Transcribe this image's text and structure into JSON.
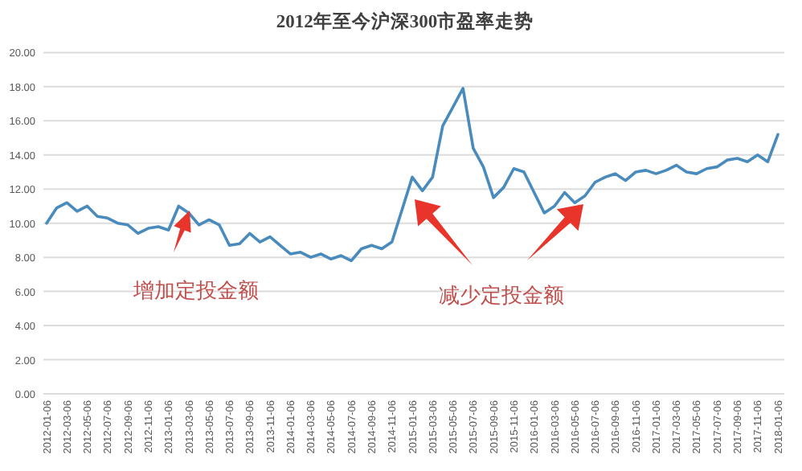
{
  "chart_data": {
    "type": "line",
    "title": "2012年至今沪深300市盈率走势",
    "categories": [
      "2012-01-06",
      null,
      "2012-03-06",
      null,
      "2012-05-06",
      null,
      "2012-07-06",
      null,
      "2012-09-06",
      null,
      "2012-11-06",
      null,
      "2013-01-06",
      null,
      "2013-03-06",
      null,
      "2013-05-06",
      null,
      "2013-07-06",
      null,
      "2013-09-06",
      null,
      "2013-11-06",
      null,
      "2014-01-06",
      null,
      "2014-03-06",
      null,
      "2014-05-06",
      null,
      "2014-07-06",
      null,
      "2014-09-06",
      null,
      "2014-11-06",
      null,
      "2015-01-06",
      null,
      "2015-03-06",
      null,
      "2015-05-06",
      null,
      "2015-07-06",
      null,
      "2015-09-06",
      null,
      "2015-11-06",
      null,
      "2016-01-06",
      null,
      "2016-03-06",
      null,
      "2016-05-06",
      null,
      "2016-07-06",
      null,
      "2016-09-06",
      null,
      "2016-11-06",
      null,
      "2017-01-06",
      null,
      "2017-03-06",
      null,
      "2017-05-06",
      null,
      "2017-07-06",
      null,
      "2017-09-06",
      null,
      "2017-11-06",
      null,
      "2018-01-06"
    ],
    "series": [
      {
        "color": "#4a8bbd",
        "values": [
          10.0,
          10.9,
          11.2,
          10.7,
          11.0,
          10.4,
          10.3,
          10.0,
          9.9,
          9.4,
          9.7,
          9.8,
          9.6,
          11.0,
          10.6,
          9.9,
          10.2,
          9.9,
          8.7,
          8.8,
          9.4,
          8.9,
          9.2,
          8.7,
          8.2,
          8.3,
          8.0,
          8.2,
          7.9,
          8.1,
          7.8,
          8.5,
          8.7,
          8.5,
          8.9,
          10.8,
          12.7,
          11.9,
          12.7,
          15.7,
          16.8,
          17.9,
          14.4,
          13.3,
          11.5,
          12.1,
          13.2,
          13.0,
          11.8,
          10.6,
          11.0,
          11.8,
          11.2,
          11.6,
          12.4,
          12.7,
          12.9,
          12.5,
          13.0,
          13.1,
          12.9,
          13.1,
          13.4,
          13.0,
          12.9,
          13.2,
          13.3,
          13.7,
          13.8,
          13.6,
          14.0,
          13.6,
          15.2
        ]
      }
    ],
    "ylim": [
      0,
      20
    ],
    "yticks": [
      {
        "value": 0,
        "label": "0.00"
      },
      {
        "value": 2,
        "label": "2.00"
      },
      {
        "value": 4,
        "label": "4.00"
      },
      {
        "value": 6,
        "label": "6.00"
      },
      {
        "value": 8,
        "label": "8.00"
      },
      {
        "value": 10,
        "label": "10.00"
      },
      {
        "value": 12,
        "label": "12.00"
      },
      {
        "value": 14,
        "label": "14.00"
      },
      {
        "value": 16,
        "label": "16.00"
      },
      {
        "value": 18,
        "label": "18.00"
      },
      {
        "value": 20,
        "label": "20.00"
      }
    ],
    "grid": "y",
    "marker": "none",
    "line_style": "solid",
    "annotations": [
      "增加定投金额",
      "减少定投金额"
    ]
  }
}
